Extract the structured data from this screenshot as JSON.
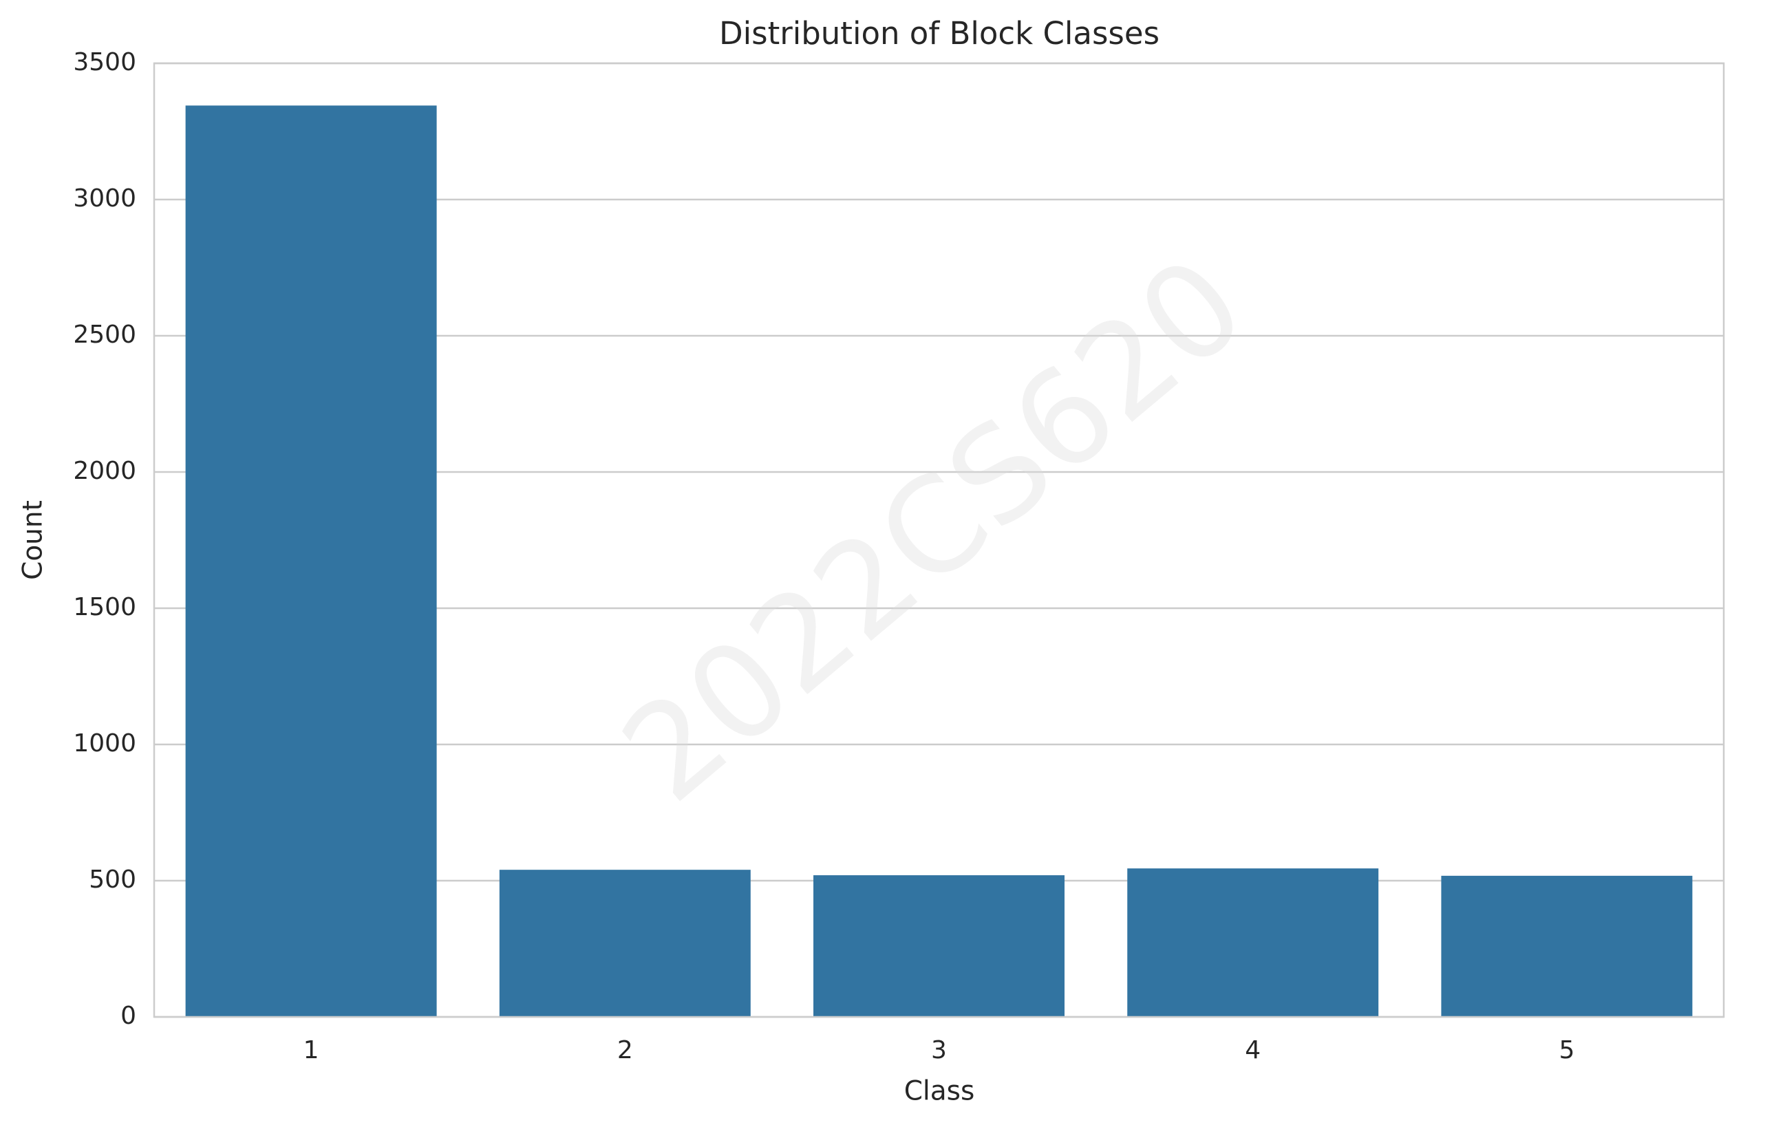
{
  "chart_data": {
    "type": "bar",
    "title": "Distribution of Block Classes",
    "xlabel": "Class",
    "ylabel": "Count",
    "categories": [
      "1",
      "2",
      "3",
      "4",
      "5"
    ],
    "values": [
      3345,
      540,
      520,
      545,
      518
    ],
    "ylim": [
      0,
      3500
    ],
    "yticks": [
      0,
      500,
      1000,
      1500,
      2000,
      2500,
      3000,
      3500
    ],
    "grid": "horizontal",
    "bar_color": "#3274a1",
    "grid_color": "#cccccc",
    "watermark": "2022CS620"
  }
}
